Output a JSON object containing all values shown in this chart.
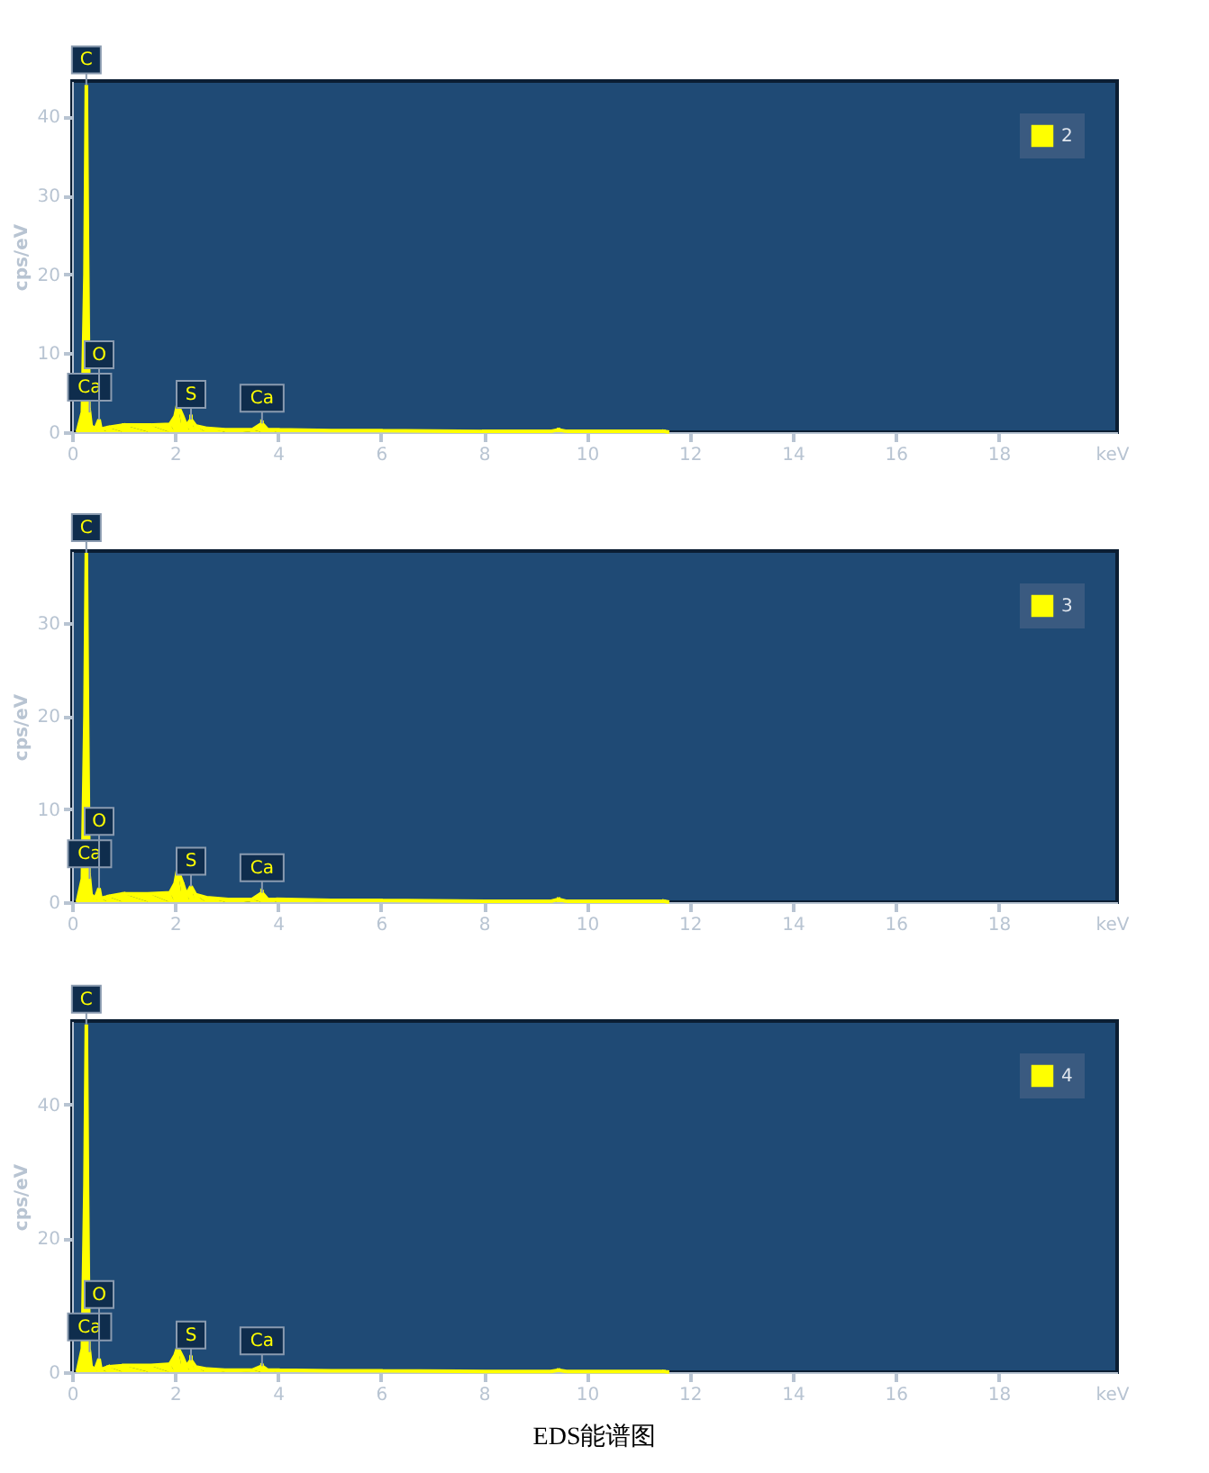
{
  "chart_data": [
    {
      "type": "area",
      "ylabel": "cps/eV",
      "xlabel": "keV",
      "xlim": [
        0,
        20.3
      ],
      "ylim": [
        0,
        44.5
      ],
      "xticks": [
        0,
        2,
        4,
        6,
        8,
        10,
        12,
        14,
        16,
        18
      ],
      "yticks": [
        0,
        10,
        20,
        30,
        40
      ],
      "grid": false,
      "legend": "top right",
      "series": [
        {
          "name": "2",
          "color": "#ffff00",
          "x": [
            0.1,
            0.2,
            0.25,
            0.277,
            0.3,
            0.33,
            0.34,
            0.37,
            0.45,
            0.525,
            0.56,
            0.7,
            1.0,
            1.5,
            1.9,
            2.0,
            2.05,
            2.15,
            2.22,
            2.31,
            2.4,
            2.6,
            3.0,
            3.5,
            3.69,
            3.8,
            4.0,
            5.0,
            6.0,
            8.0,
            9.3,
            9.45,
            9.6,
            11.5,
            11.6
          ],
          "values": [
            0,
            2.5,
            20,
            44,
            23,
            3,
            2.5,
            0.8,
            0.4,
            1.6,
            0.4,
            0.6,
            0.9,
            0.9,
            1.0,
            2.0,
            3.5,
            2.0,
            0.8,
            1.6,
            0.8,
            0.5,
            0.3,
            0.3,
            1.1,
            0.3,
            0.3,
            0.2,
            0.2,
            0.1,
            0.1,
            0.3,
            0.1,
            0.1,
            0
          ]
        }
      ],
      "annotations": [
        {
          "text": "C",
          "x": 0.277,
          "y": 44
        },
        {
          "text": "Ca",
          "x": 0.34,
          "y": 2.5
        },
        {
          "text": "O",
          "x": 0.525,
          "y": 1.6
        },
        {
          "text": "S",
          "x": 2.31,
          "y": 1.6
        },
        {
          "text": "Ca",
          "x": 3.69,
          "y": 1.1
        }
      ]
    },
    {
      "type": "area",
      "ylabel": "cps/eV",
      "xlabel": "keV",
      "xlim": [
        0,
        20.3
      ],
      "ylim": [
        0,
        37.7
      ],
      "xticks": [
        0,
        2,
        4,
        6,
        8,
        10,
        12,
        14,
        16,
        18
      ],
      "yticks": [
        0,
        10,
        20,
        30
      ],
      "grid": false,
      "legend": "top right",
      "series": [
        {
          "name": "3",
          "color": "#ffff00",
          "x": [
            0.1,
            0.2,
            0.25,
            0.277,
            0.3,
            0.33,
            0.34,
            0.37,
            0.45,
            0.525,
            0.56,
            0.7,
            1.0,
            1.5,
            1.9,
            2.0,
            2.05,
            2.15,
            2.22,
            2.31,
            2.4,
            2.6,
            3.0,
            3.5,
            3.69,
            3.8,
            4.0,
            5.0,
            6.0,
            8.0,
            9.3,
            9.45,
            9.6,
            11.5,
            11.6
          ],
          "values": [
            0,
            2.5,
            20,
            37.5,
            20,
            3,
            2.5,
            0.8,
            0.4,
            1.5,
            0.4,
            0.6,
            0.9,
            0.9,
            1.0,
            2.0,
            3.5,
            2.0,
            0.8,
            1.7,
            0.8,
            0.5,
            0.3,
            0.3,
            1.0,
            0.3,
            0.3,
            0.2,
            0.2,
            0.1,
            0.1,
            0.3,
            0.1,
            0.1,
            0
          ]
        }
      ],
      "annotations": [
        {
          "text": "C",
          "x": 0.277,
          "y": 37.5
        },
        {
          "text": "Ca",
          "x": 0.34,
          "y": 2.5
        },
        {
          "text": "O",
          "x": 0.525,
          "y": 1.5
        },
        {
          "text": "S",
          "x": 2.31,
          "y": 1.7
        },
        {
          "text": "Ca",
          "x": 3.69,
          "y": 1.0
        }
      ]
    },
    {
      "type": "area",
      "ylabel": "cps/eV",
      "xlabel": "keV",
      "xlim": [
        0,
        20.3
      ],
      "ylim": [
        0,
        52.5
      ],
      "xticks": [
        0,
        2,
        4,
        6,
        8,
        10,
        12,
        14,
        16,
        18
      ],
      "yticks": [
        0,
        20,
        40
      ],
      "grid": false,
      "legend": "top right",
      "series": [
        {
          "name": "4",
          "color": "#ffff00",
          "x": [
            0.1,
            0.2,
            0.25,
            0.277,
            0.3,
            0.33,
            0.34,
            0.37,
            0.45,
            0.525,
            0.56,
            0.7,
            1.0,
            1.5,
            1.9,
            2.0,
            2.05,
            2.15,
            2.22,
            2.31,
            2.4,
            2.6,
            3.0,
            3.5,
            3.69,
            3.8,
            4.0,
            5.0,
            6.0,
            8.0,
            9.3,
            9.45,
            9.6,
            11.5,
            11.6
          ],
          "values": [
            0,
            3.5,
            28,
            52,
            27,
            3.5,
            3.0,
            0.8,
            0.4,
            2.0,
            0.4,
            0.8,
            1.0,
            1.0,
            1.2,
            2.5,
            3.7,
            2.2,
            0.9,
            1.8,
            0.8,
            0.5,
            0.3,
            0.3,
            0.9,
            0.3,
            0.3,
            0.2,
            0.2,
            0.1,
            0.1,
            0.3,
            0.1,
            0.1,
            0
          ]
        }
      ],
      "annotations": [
        {
          "text": "C",
          "x": 0.277,
          "y": 52
        },
        {
          "text": "Ca",
          "x": 0.34,
          "y": 3.0
        },
        {
          "text": "O",
          "x": 0.525,
          "y": 2.0
        },
        {
          "text": "S",
          "x": 2.31,
          "y": 1.8
        },
        {
          "text": "Ca",
          "x": 3.69,
          "y": 0.9
        },
        "EDS能谱图"
      ]
    }
  ]
}
